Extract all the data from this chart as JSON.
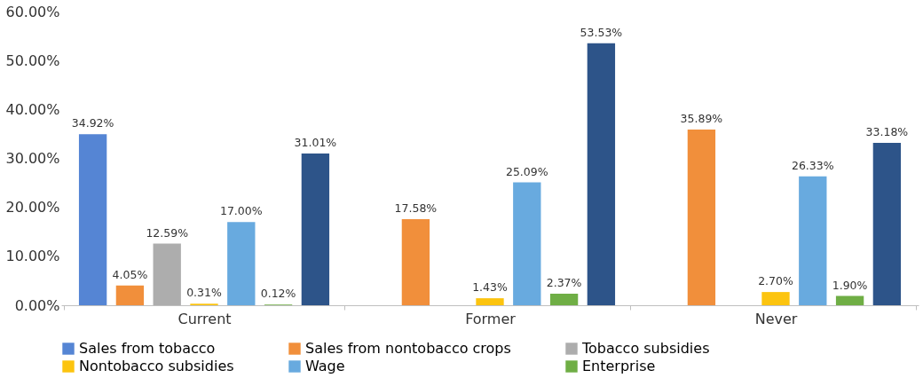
{
  "chart_data": {
    "type": "bar",
    "categories": [
      "Current",
      "Former",
      "Never"
    ],
    "series": [
      {
        "name": "Sales from tobacco",
        "color": "#5585d4",
        "values": [
          34.92,
          null,
          null
        ],
        "value_labels": [
          "34.92%",
          null,
          null
        ]
      },
      {
        "name": "Sales from nontobacco crops",
        "color": "#f18f3b",
        "values": [
          4.05,
          17.58,
          35.89
        ],
        "value_labels": [
          "4.05%",
          "17.58%",
          "35.89%"
        ]
      },
      {
        "name": "Tobacco subsidies",
        "color": "#adadad",
        "values": [
          12.59,
          null,
          null
        ],
        "value_labels": [
          "12.59%",
          null,
          null
        ]
      },
      {
        "name": "Nontobacco subsidies",
        "color": "#fcc40f",
        "values": [
          0.31,
          1.43,
          2.7
        ],
        "value_labels": [
          "0.31%",
          "1.43%",
          "2.70%"
        ]
      },
      {
        "name": "Wage",
        "color": "#68aadf",
        "values": [
          17.0,
          25.09,
          26.33
        ],
        "value_labels": [
          "17.00%",
          "25.09%",
          "26.33%"
        ]
      },
      {
        "name": "Enterprise",
        "color": "#6fae45",
        "values": [
          0.12,
          2.37,
          1.9
        ],
        "value_labels": [
          "0.12%",
          "2.37%",
          "1.90%"
        ]
      },
      {
        "color": "#2d5489",
        "values": [
          31.01,
          53.53,
          33.18
        ],
        "value_labels": [
          "31.01%",
          "53.53%",
          "33.18%"
        ]
      }
    ],
    "ylim": [
      0,
      60
    ],
    "yticks": [
      {
        "value": 0,
        "label": "0.00%"
      },
      {
        "value": 10,
        "label": "10.00%"
      },
      {
        "value": 20,
        "label": "20.00%"
      },
      {
        "value": 30,
        "label": "30.00%"
      },
      {
        "value": 40,
        "label": "40.00%"
      },
      {
        "value": 50,
        "label": "50.00%"
      },
      {
        "value": 60,
        "label": "60.00%"
      }
    ],
    "grid": false,
    "legend": "bottom"
  }
}
